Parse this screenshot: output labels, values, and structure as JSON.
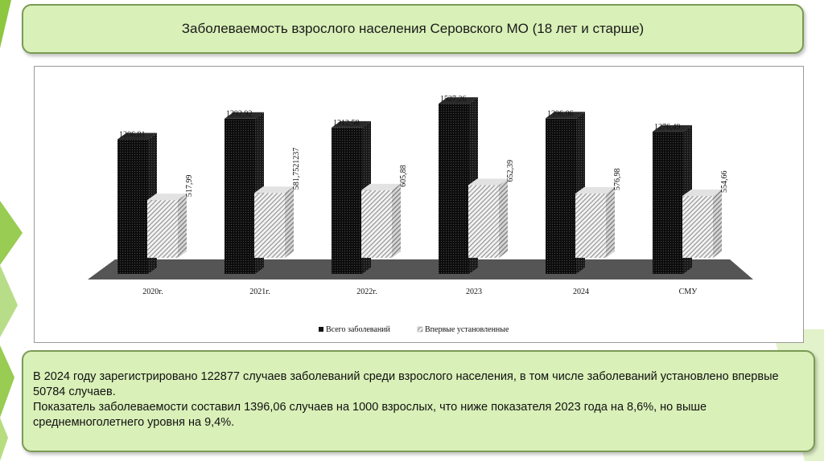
{
  "slide": {
    "title": "Заболеваемость взрослого населения Серовского МО (18 лет и старше)",
    "accent_color": "#8dc63f",
    "paragraph1": "В 2024 году зарегистрировано 122877 случаев заболеваний среди взрослого населения, в том числе заболеваний установлено впервые 50784 случаев.",
    "paragraph2": "Показатель заболеваемости составил 1396,06 случаев на 1000 взрослых, что ниже показателя 2023 года на 8,6%, но выше среднемноголетнего уровня на 9,4%."
  },
  "chart_data": {
    "type": "bar",
    "style": "3d-clustered-column",
    "categories": [
      "2020г.",
      "2021г.",
      "2022г.",
      "2023",
      "2024",
      "СМУ"
    ],
    "series": [
      {
        "name": "Всего заболеваний",
        "color": "#111111",
        "values": [
          1206.81,
          1392.92,
          1312.58,
          1527.26,
          1396.06,
          1276.49
        ],
        "labels": [
          "1206,81",
          "1392,92",
          "1312,58",
          "1527,26",
          "1396,06",
          "1276,49"
        ]
      },
      {
        "name": "Впервые установленные",
        "color": "#d8d8d8",
        "values": [
          517.99,
          581.7521237,
          605.88,
          652.39,
          576.98,
          554.66
        ],
        "labels": [
          "517,99",
          "581,7521237",
          "605,88",
          "652,39",
          "576,98",
          "554,66"
        ]
      }
    ],
    "ylim": [
      0,
      1600
    ],
    "legend_position": "bottom",
    "grid": false
  }
}
